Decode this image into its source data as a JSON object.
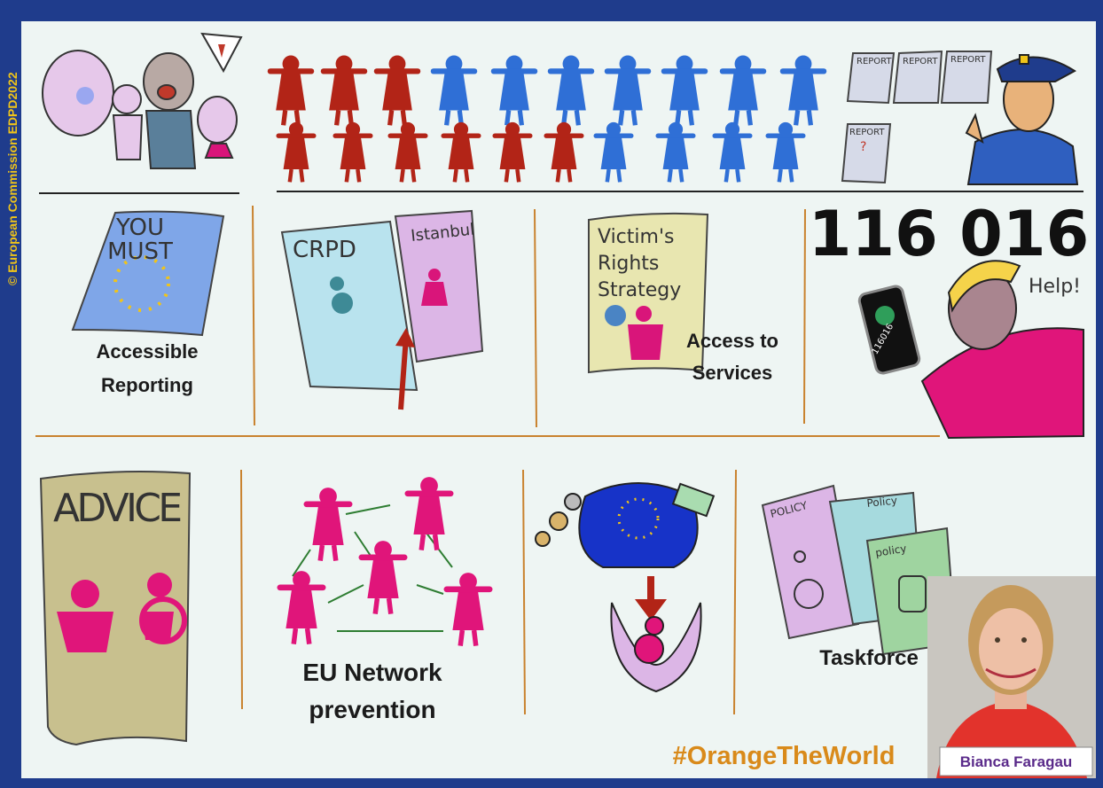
{
  "credit": "© European Commission EDPD2022",
  "top": {
    "reports": [
      "REPORT",
      "REPORT",
      "REPORT",
      "REPORT"
    ],
    "report_mark": "?"
  },
  "middle": {
    "accessible_reporting": {
      "document": [
        "YOU",
        "MUST"
      ],
      "caption": [
        "Accessible",
        "Reporting"
      ]
    },
    "conventions": {
      "documents": [
        "CRPD",
        "Istanbul"
      ]
    },
    "services": {
      "document": [
        "Victim's",
        "Rights",
        "Strategy"
      ],
      "caption": [
        "Access to",
        "Services"
      ]
    },
    "helpline": {
      "number": "116 016",
      "speech": "Help!",
      "phone_label": "116016"
    }
  },
  "bottom": {
    "advice": {
      "document": "ADVICE"
    },
    "network": {
      "caption": [
        "EU Network",
        "prevention"
      ]
    },
    "taskforce": {
      "documents": [
        "POLICY",
        "Policy",
        "policy"
      ],
      "caption": "Taskforce"
    }
  },
  "hashtag": "#OrangeTheWorld",
  "author": "Bianca Faragau"
}
